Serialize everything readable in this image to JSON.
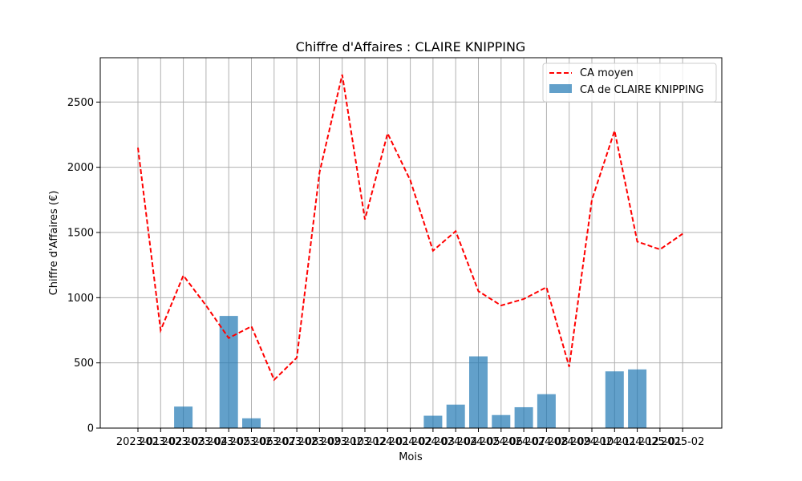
{
  "chart_data": {
    "type": "bar",
    "title": "Chiffre d'Affaires : CLAIRE KNIPPING",
    "xlabel": "Mois",
    "ylabel": "Chiffre d'Affaires (€)",
    "categories": [
      "2023-01",
      "2023-02",
      "2023-03",
      "2023-04",
      "2023-05",
      "2023-06",
      "2023-07",
      "2023-08",
      "2023-09",
      "2023-10",
      "2023-12",
      "2024-01",
      "2024-02",
      "2024-03",
      "2024-04",
      "2024-05",
      "2024-06",
      "2024-07",
      "2024-08",
      "2024-09",
      "2024-10",
      "2024-11",
      "2024-12",
      "2025-01",
      "2025-02"
    ],
    "x_tick_labels": [
      "2023-01",
      "2023-02",
      "2023-03",
      "2023-04",
      "2023-05",
      "2023-06",
      "2023-07",
      "2023-08",
      "2023-09",
      "2023-10",
      "2023-12",
      "2024-01",
      "2024-02",
      "2024-03",
      "2024-04",
      "2024-05",
      "2024-06",
      "2024-07",
      "2024-08",
      "2024-09",
      "2024-10",
      "2024-11",
      "2024-12",
      "2025-01",
      "2025-02"
    ],
    "series": [
      {
        "name": "CA de CLAIRE KNIPPING",
        "kind": "bar",
        "color": "#1f77b4",
        "values": [
          0,
          0,
          165,
          0,
          860,
          75,
          0,
          0,
          0,
          0,
          0,
          0,
          0,
          95,
          180,
          550,
          100,
          160,
          260,
          0,
          0,
          435,
          450,
          0,
          0
        ]
      },
      {
        "name": "CA moyen",
        "kind": "line",
        "style": "dashed",
        "color": "#ff0000",
        "values": [
          2150,
          750,
          1170,
          940,
          690,
          780,
          370,
          540,
          1960,
          2710,
          1600,
          2260,
          1900,
          1360,
          1510,
          1050,
          940,
          990,
          1080,
          470,
          1750,
          2280,
          1430,
          1370,
          1490
        ]
      }
    ],
    "ylim": [
      0,
      2840
    ],
    "y_ticks": [
      0,
      500,
      1000,
      1500,
      2000,
      2500
    ],
    "grid": true,
    "legend_position": "top-right"
  }
}
